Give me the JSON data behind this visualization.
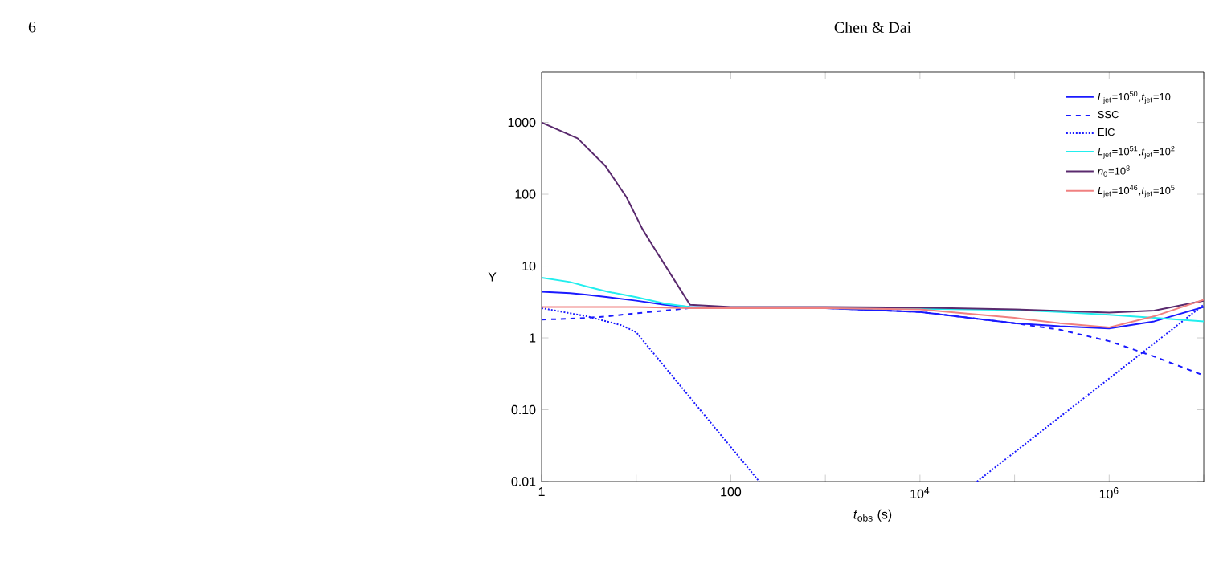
{
  "chart_data": {
    "type": "line",
    "xlabel": "*t*$_{obs}$ (s)",
    "ylabel": "Y",
    "annotations": [
      "6",
      "Chen & Dai"
    ],
    "log": "xy",
    "legend": "top right",
    "xlim": [
      1,
      10000000
    ],
    "ylim": [
      0.01,
      5000
    ],
    "xticks": [
      1,
      {
        "value": 10,
        "label": null
      },
      100,
      {
        "value": 1000,
        "label": null
      },
      {
        "value": 10000,
        "label": "10$^{4}$"
      },
      {
        "value": 100000,
        "label": null
      },
      {
        "value": 1000000,
        "label": "10$^{6}$"
      },
      {
        "value": 10000000,
        "label": null
      }
    ],
    "yticks": [
      0.01,
      {
        "value": 0.1,
        "label": "0.10"
      },
      1,
      10,
      100,
      1000
    ],
    "x": [
      1,
      2,
      3,
      5,
      10,
      20,
      37,
      100,
      1000,
      10000,
      100000,
      300000,
      1000000,
      3000000,
      10000000
    ],
    "series": [
      {
        "name": "*L*$_{jet}$=10$^{50}$,*t*$_{jet}$=10",
        "color": "#1a1aff",
        "line_style": "solid",
        "values": [
          4.4,
          4.2,
          4.0,
          3.7,
          3.3,
          2.9,
          2.7,
          2.6,
          2.6,
          2.3,
          1.6,
          1.45,
          1.35,
          1.7,
          2.7
        ]
      },
      {
        "name": "SSC",
        "color": "#1a1aff",
        "line_style": "dashed",
        "values": [
          1.8,
          1.85,
          1.9,
          2.0,
          2.2,
          2.4,
          2.6,
          2.6,
          2.6,
          2.3,
          1.6,
          1.3,
          0.9,
          0.55,
          0.3
        ]
      },
      {
        "name": "EIC",
        "color": "#1a1aff",
        "line_style": "dotted",
        "x": [
          1,
          3,
          7,
          10,
          200,
          1000,
          40000,
          10000000
        ],
        "values": [
          2.6,
          2.0,
          1.5,
          1.2,
          0.01,
          null,
          0.01,
          2.9
        ]
      },
      {
        "name": "*L*$_{jet}$=10$^{51}$,*t*$_{jet}$=10$^{2}$",
        "color": "#22eeee",
        "line_style": "solid",
        "values": [
          6.9,
          6.0,
          5.2,
          4.4,
          3.7,
          3.0,
          2.7,
          2.6,
          2.6,
          2.55,
          2.45,
          2.3,
          2.1,
          1.9,
          1.7
        ]
      },
      {
        "name": "*n*$_{0}$=10$^{8}$",
        "color": "#5a2a6e",
        "line_style": "solid",
        "x": [
          1,
          2.4,
          4.7,
          7.9,
          11.6,
          15,
          37,
          100,
          1000,
          10000,
          100000,
          1000000,
          3000000,
          10000000
        ],
        "values": [
          1000,
          600,
          250,
          91,
          33,
          19,
          2.9,
          2.7,
          2.7,
          2.65,
          2.5,
          2.25,
          2.4,
          3.3
        ]
      },
      {
        "name": "*L*$_{jet}$=10$^{46}$,*t*$_{jet}$=10$^{5}$",
        "color": "#f08080",
        "line_style": "solid",
        "values": [
          2.7,
          2.7,
          2.7,
          2.7,
          2.7,
          2.65,
          2.6,
          2.6,
          2.6,
          2.5,
          1.9,
          1.6,
          1.4,
          2.0,
          3.4
        ]
      }
    ]
  }
}
